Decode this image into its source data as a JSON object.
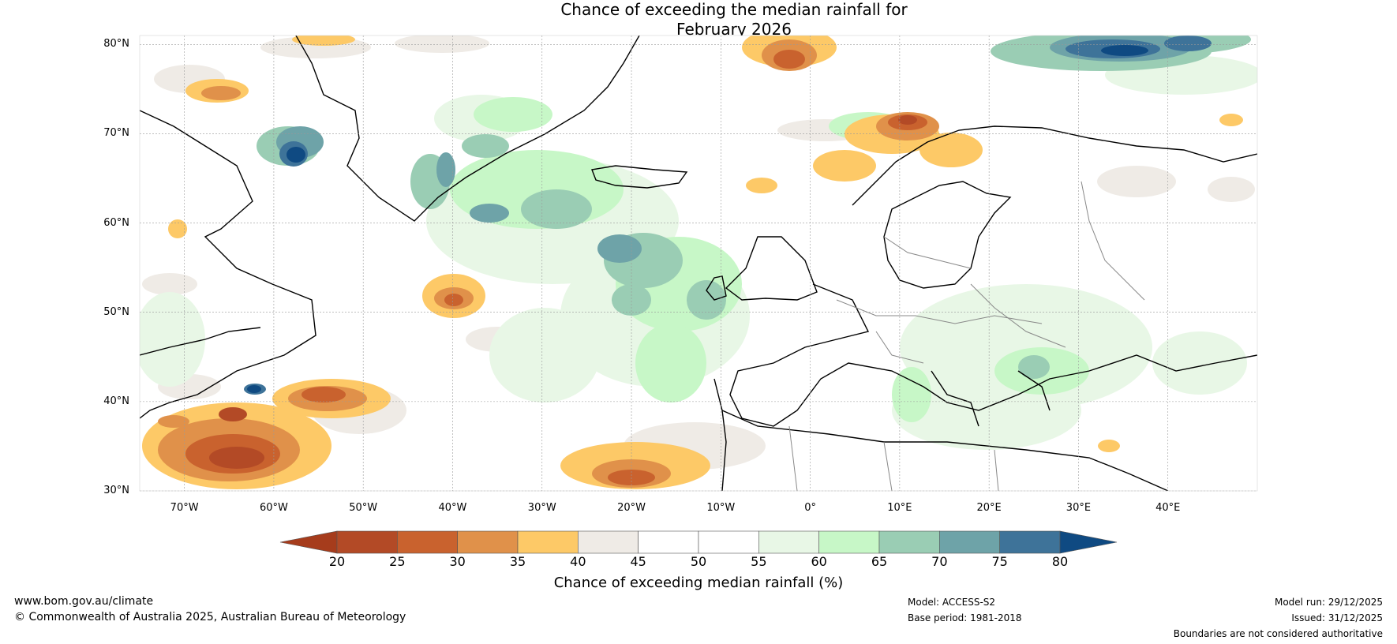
{
  "title": {
    "line1": "Chance of exceeding the median rainfall for",
    "line2": "February 2026"
  },
  "axes": {
    "lat_labels": [
      "80°N",
      "70°N",
      "60°N",
      "50°N",
      "40°N",
      "30°N"
    ],
    "lon_labels": [
      "70°W",
      "60°W",
      "50°W",
      "40°W",
      "30°W",
      "20°W",
      "10°W",
      "0°",
      "10°E",
      "20°E",
      "30°E",
      "40°E"
    ],
    "lat_values": [
      80,
      70,
      60,
      50,
      40,
      30
    ],
    "lon_values": [
      -70,
      -60,
      -50,
      -40,
      -30,
      -20,
      -10,
      0,
      10,
      20,
      30,
      40
    ],
    "lon_range": [
      -75,
      50
    ],
    "lat_range": [
      30,
      81
    ]
  },
  "colorbar": {
    "ticks": [
      "20",
      "25",
      "30",
      "35",
      "40",
      "45",
      "50",
      "55",
      "60",
      "65",
      "70",
      "75",
      "80"
    ],
    "colors": [
      "#a63c1c",
      "#b34a26",
      "#c9622e",
      "#e0914a",
      "#fdc967",
      "#efebe6",
      "#ffffff",
      "#ffffff",
      "#e8f7e6",
      "#c7f7c7",
      "#9acdb4",
      "#6ea3a8",
      "#3e7399",
      "#0f4a82"
    ],
    "label": "Chance of exceeding median rainfall (%)"
  },
  "footer": {
    "website": "www.bom.gov.au/climate",
    "copyright": "© Commonwealth of Australia 2025, Australian Bureau of Meteorology",
    "model": "Model: ACCESS-S2",
    "base_period": "Base period: 1981-2018",
    "model_run": "Model run: 29/12/2025",
    "issued": "Issued: 31/12/2025",
    "disclaimer": "Boundaries are not considered authoritative"
  }
}
